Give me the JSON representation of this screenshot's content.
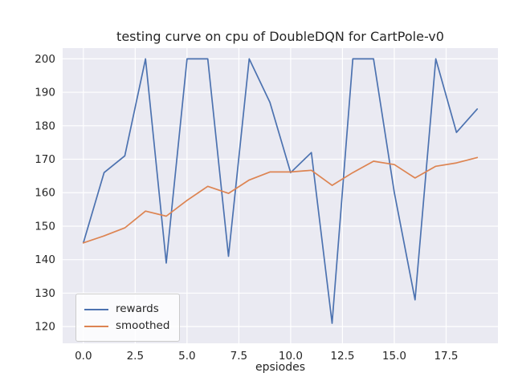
{
  "chart_data": {
    "type": "line",
    "title": "testing curve on cpu of DoubleDQN for CartPole-v0",
    "xlabel": "epsiodes",
    "ylabel": "",
    "x": [
      0,
      1,
      2,
      3,
      4,
      5,
      6,
      7,
      8,
      9,
      10,
      11,
      12,
      13,
      14,
      15,
      16,
      17,
      18,
      19
    ],
    "series": [
      {
        "name": "rewards",
        "color": "#4c72b0",
        "values": [
          145,
          166,
          171,
          200,
          139,
          200,
          200,
          141,
          200,
          187,
          166,
          172,
          121,
          200,
          200,
          160,
          128,
          200,
          178,
          185
        ]
      },
      {
        "name": "smoothed",
        "color": "#dd8452",
        "values": [
          145.0,
          147.1,
          149.5,
          154.5,
          153.0,
          157.7,
          161.9,
          159.8,
          163.8,
          166.2,
          166.2,
          166.7,
          162.2,
          166.0,
          169.4,
          168.4,
          164.4,
          167.9,
          168.9,
          170.5
        ]
      }
    ],
    "xticks": [
      0,
      2.5,
      5,
      7.5,
      10,
      12.5,
      15,
      17.5
    ],
    "xtick_labels": [
      "0.0",
      "2.5",
      "5.0",
      "7.5",
      "10.0",
      "12.5",
      "15.0",
      "17.5"
    ],
    "yticks": [
      120,
      130,
      140,
      150,
      160,
      170,
      180,
      190,
      200
    ],
    "ytick_labels": [
      "120",
      "130",
      "140",
      "150",
      "160",
      "170",
      "180",
      "190",
      "200"
    ],
    "xlim": [
      -1,
      20
    ],
    "ylim": [
      115,
      203.2
    ],
    "grid": true,
    "legend_position": "lower left",
    "colors": {
      "plot_bg": "#eaeaf2",
      "grid": "#ffffff",
      "figure_bg": "#ffffff",
      "tick_text": "#262626",
      "rewards_line": "#4c72b0",
      "smoothed_line": "#dd8452"
    }
  }
}
